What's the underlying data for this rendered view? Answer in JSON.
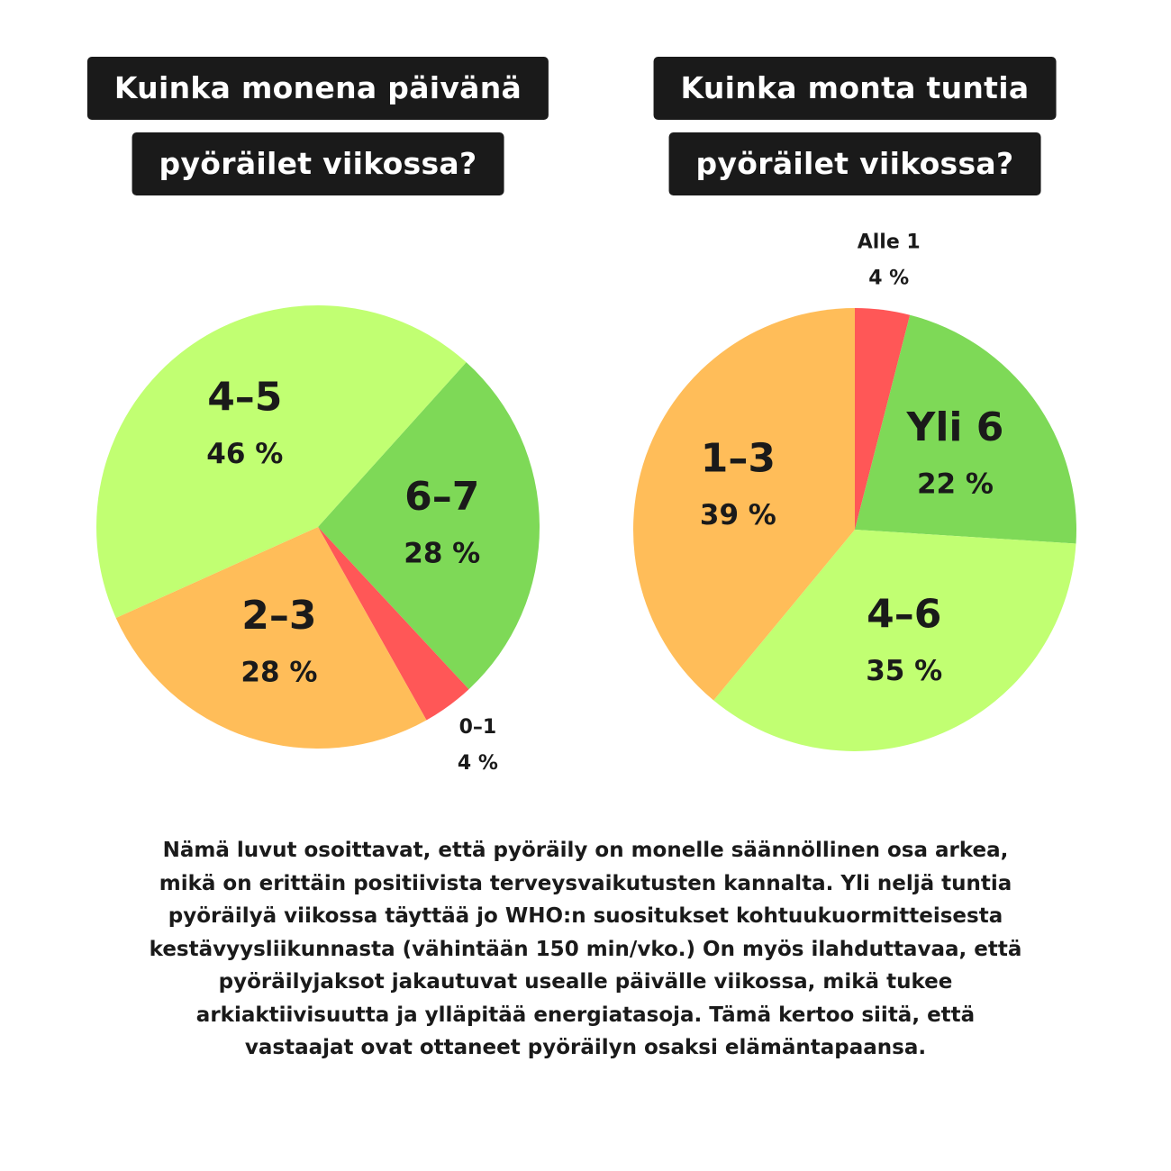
{
  "chart_data": [
    {
      "type": "pie",
      "title": [
        "Kuinka monena päivänä",
        "pyöräilet viikossa?"
      ],
      "categories": [
        "6–7",
        "0–1",
        "2–3",
        "4–5"
      ],
      "values": [
        28,
        4,
        28,
        46
      ],
      "value_labels": [
        "28 %",
        "4 %",
        "28 %",
        "46 %"
      ],
      "colors": [
        "#7ed957",
        "#ff5757",
        "#ffbd59",
        "#c1ff72"
      ]
    },
    {
      "type": "pie",
      "title": [
        "Kuinka monta tuntia",
        "pyöräilet viikossa?"
      ],
      "categories": [
        "Alle 1",
        "Yli 6",
        "4–6",
        "1–3"
      ],
      "values": [
        4,
        22,
        35,
        39
      ],
      "value_labels": [
        "4 %",
        "22 %",
        "35 %",
        "39 %"
      ],
      "colors": [
        "#ff5757",
        "#7ed957",
        "#c1ff72",
        "#ffbd59"
      ]
    }
  ],
  "paragraph": [
    "Nämä luvut osoittavat, että pyöräily on monelle säännöllinen osa arkea,",
    "mikä on erittäin positiivista terveysvaikutusten kannalta. Yli neljä tuntia",
    "pyöräilyä viikossa täyttää jo WHO:n suositukset kohtuukuormitteisesta",
    "kestävyysliikunnasta (vähintään 150 min/vko.) On myös ilahduttavaa, että",
    "pyöräilyjaksot jakautuvat usealle päivälle viikossa, mikä tukee",
    "arkiaktiivisuutta ja ylläpitää energiatasoja. Tämä kertoo siitä, että",
    "vastaajat ovat ottaneet pyöräilyn osaksi elämäntapaansa."
  ]
}
